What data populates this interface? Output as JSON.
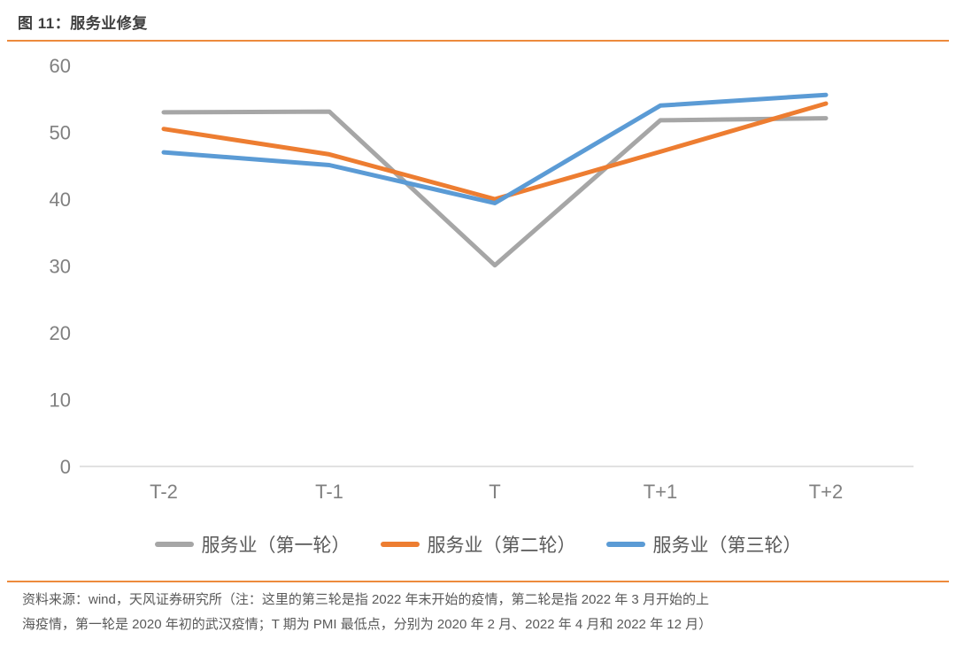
{
  "header": {
    "title": "图 11：服务业修复"
  },
  "colors": {
    "accent_rule": "#ed8a3c",
    "title_text": "#3f3f3f",
    "axis_text": "#808080",
    "axis_line": "#d9d9d9",
    "legend_text": "#595959",
    "footer_text": "#595959"
  },
  "chart_data": {
    "type": "line",
    "title": "图 11：服务业修复",
    "categories": [
      "T-2",
      "T-1",
      "T",
      "T+1",
      "T+2"
    ],
    "series": [
      {
        "name": "服务业（第一轮）",
        "color": "#a6a6a6",
        "values": [
          53.0,
          53.1,
          30.1,
          51.8,
          52.1
        ]
      },
      {
        "name": "服务业（第二轮）",
        "color": "#ed7d31",
        "values": [
          50.5,
          46.7,
          40.0,
          47.1,
          54.3
        ]
      },
      {
        "name": "服务业（第三轮）",
        "color": "#5b9bd5",
        "values": [
          47.0,
          45.1,
          39.4,
          54.0,
          55.6
        ]
      }
    ],
    "xlabel": "",
    "ylabel": "",
    "ylim": [
      0,
      60
    ],
    "yticks": [
      0,
      10,
      20,
      30,
      40,
      50,
      60
    ],
    "grid": false,
    "legend_position": "bottom"
  },
  "footer": {
    "line1": "资料来源：wind，天风证券研究所（注：这里的第三轮是指 2022 年末开始的疫情，第二轮是指 2022 年 3 月开始的上",
    "line2": "海疫情，第一轮是 2020 年初的武汉疫情；T 期为 PMI 最低点，分别为 2020 年 2 月、2022 年 4 月和 2022 年 12 月）"
  }
}
